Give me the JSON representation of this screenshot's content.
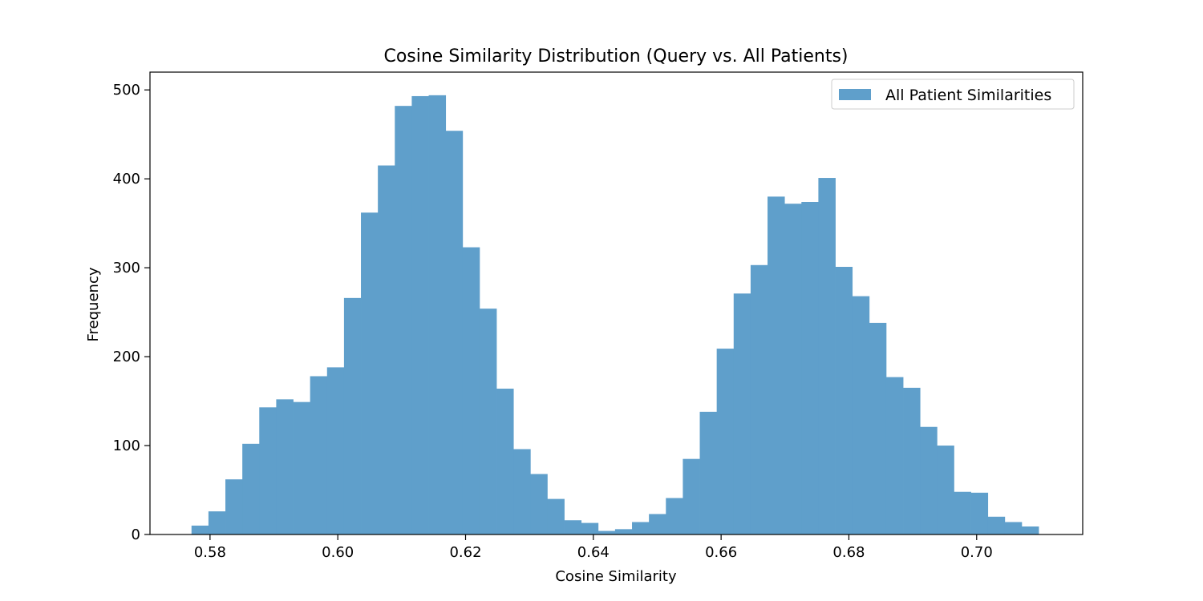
{
  "chart_data": {
    "type": "bar",
    "title": "Cosine Similarity Distribution (Query vs. All Patients)",
    "xlabel": "Cosine Similarity",
    "ylabel": "Frequency",
    "xlim": [
      0.5706,
      0.7166
    ],
    "ylim": [
      0,
      520
    ],
    "xticks": [
      0.58,
      0.6,
      0.62,
      0.64,
      0.66,
      0.68,
      0.7
    ],
    "xtick_labels": [
      "0.58",
      "0.60",
      "0.62",
      "0.64",
      "0.66",
      "0.68",
      "0.70"
    ],
    "yticks": [
      0,
      100,
      200,
      300,
      400,
      500
    ],
    "ytick_labels": [
      "0",
      "100",
      "200",
      "300",
      "400",
      "500"
    ],
    "bin_start": 0.5771,
    "bin_end": 0.7097,
    "series": [
      {
        "name": "All Patient Similarities",
        "color": "#5f9fcb",
        "values": [
          10,
          26,
          62,
          102,
          143,
          152,
          149,
          178,
          188,
          266,
          362,
          415,
          482,
          493,
          494,
          454,
          323,
          254,
          164,
          96,
          68,
          40,
          16,
          13,
          4,
          6,
          14,
          23,
          41,
          85,
          138,
          209,
          271,
          303,
          380,
          372,
          374,
          401,
          301,
          268,
          238,
          177,
          165,
          121,
          100,
          48,
          47,
          20,
          14,
          9
        ]
      }
    ],
    "legend": "top-right",
    "grid": false
  }
}
